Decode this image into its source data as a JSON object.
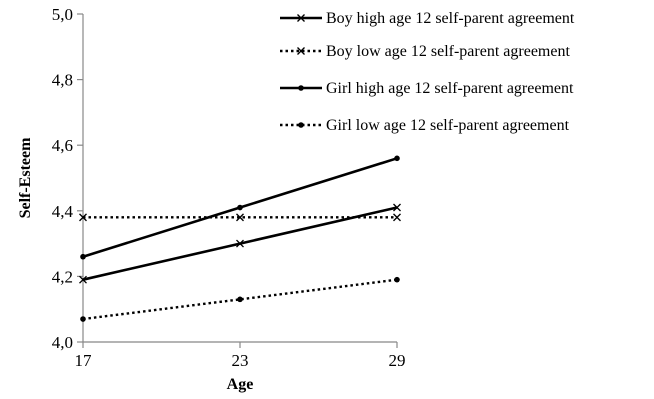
{
  "chart_data": {
    "type": "line",
    "title": "",
    "xlabel": "Age",
    "ylabel": "Self-Esteem",
    "x": [
      17,
      23,
      29
    ],
    "x_tick_labels": [
      "17",
      "23",
      "29"
    ],
    "ylim": [
      4.0,
      5.0
    ],
    "y_tick_labels": [
      "4,0",
      "4,2",
      "4,4",
      "4,6",
      "4,8",
      "5,0"
    ],
    "grid": false,
    "legend_position": "top-right",
    "series": [
      {
        "name": "Boy high age 12 self-parent agreement",
        "values": [
          4.19,
          4.3,
          4.41
        ],
        "line_style": "solid",
        "marker": "x",
        "color": "#000000"
      },
      {
        "name": "Boy low age 12 self-parent agreement",
        "values": [
          4.38,
          4.38,
          4.38
        ],
        "line_style": "dotted",
        "marker": "x",
        "color": "#000000"
      },
      {
        "name": "Girl high age 12 self-parent agreement",
        "values": [
          4.26,
          4.41,
          4.56
        ],
        "line_style": "solid",
        "marker": "dot",
        "color": "#000000"
      },
      {
        "name": "Girl low age 12 self-parent agreement",
        "values": [
          4.07,
          4.13,
          4.19
        ],
        "line_style": "dotted",
        "marker": "dot",
        "color": "#000000"
      }
    ]
  }
}
